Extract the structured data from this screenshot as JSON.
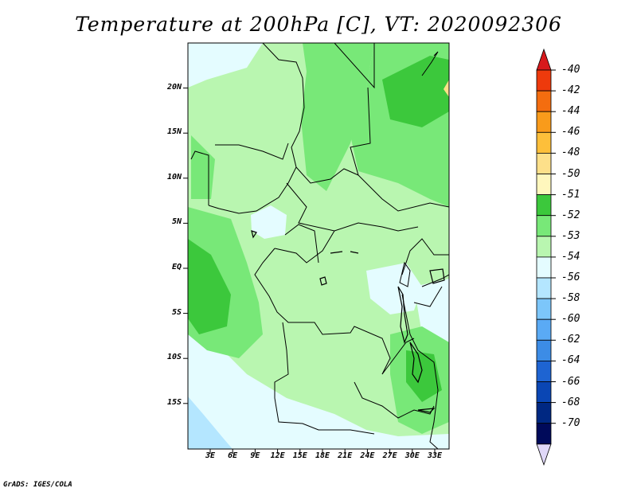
{
  "title": "Temperature at 200hPa [C], VT: 2020092306",
  "credit": "GrADS: IGES/COLA",
  "map": {
    "lat_ticks": [
      {
        "label": "20N",
        "value": 20
      },
      {
        "label": "15N",
        "value": 15
      },
      {
        "label": "10N",
        "value": 10
      },
      {
        "label": "5N",
        "value": 5
      },
      {
        "label": "EQ",
        "value": 0
      },
      {
        "label": "5S",
        "value": -5
      },
      {
        "label": "10S",
        "value": -10
      },
      {
        "label": "15S",
        "value": -15
      }
    ],
    "lon_ticks": [
      {
        "label": "3E",
        "value": 3
      },
      {
        "label": "6E",
        "value": 6
      },
      {
        "label": "9E",
        "value": 9
      },
      {
        "label": "12E",
        "value": 12
      },
      {
        "label": "15E",
        "value": 15
      },
      {
        "label": "18E",
        "value": 18
      },
      {
        "label": "21E",
        "value": 21
      },
      {
        "label": "24E",
        "value": 24
      },
      {
        "label": "27E",
        "value": 27
      },
      {
        "label": "30E",
        "value": 30
      },
      {
        "label": "33E",
        "value": 33
      }
    ]
  },
  "colorbar": {
    "labels": [
      "-40",
      "-42",
      "-44",
      "-46",
      "-48",
      "-50",
      "-51",
      "-52",
      "-53",
      "-54",
      "-56",
      "-58",
      "-60",
      "-62",
      "-64",
      "-66",
      "-68",
      "-70"
    ],
    "colors": [
      "#d7191c",
      "#ee3a0c",
      "#f46d0f",
      "#f99b1b",
      "#fdbf3a",
      "#fde08a",
      "#fff7bd",
      "#3cc83c",
      "#78e878",
      "#b9f6b0",
      "#e4fcff",
      "#b4e6ff",
      "#7cc6fa",
      "#5aaaf5",
      "#3c8ce6",
      "#1e64d2",
      "#0a46b4",
      "#002882",
      "#000a5a",
      "#e0d8f8"
    ]
  }
}
